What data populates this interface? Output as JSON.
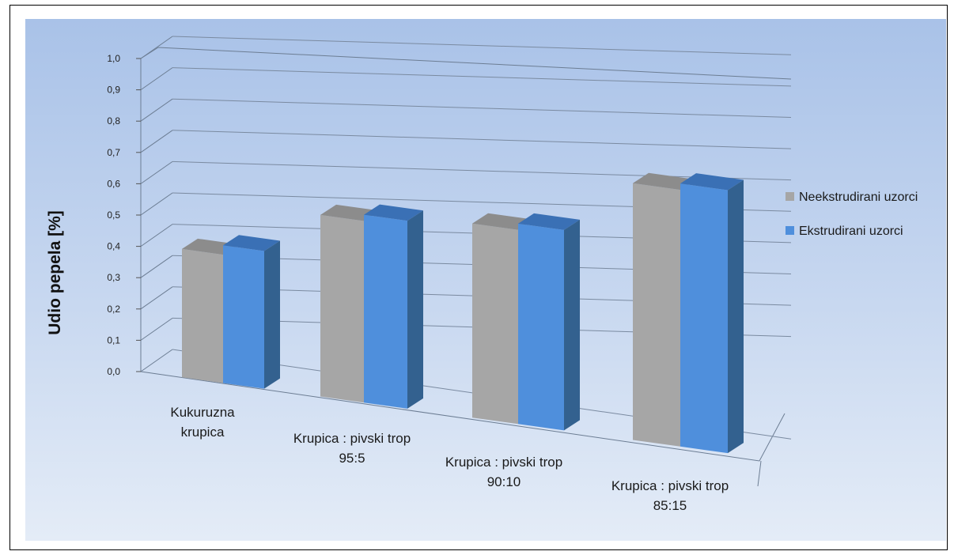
{
  "chart_data": {
    "type": "bar",
    "title": "",
    "xlabel": "",
    "ylabel": "Udio pepela [%]",
    "ylim": [
      0,
      1.0
    ],
    "yticks": [
      "0,0",
      "0,1",
      "0,2",
      "0,3",
      "0,4",
      "0,5",
      "0,6",
      "0,7",
      "0,8",
      "0,9",
      "1,0"
    ],
    "categories": [
      [
        "Kukuruzna",
        "krupica"
      ],
      [
        "Krupica : pivski trop",
        "95:5"
      ],
      [
        "Krupica : pivski trop",
        "90:10"
      ],
      [
        "Krupica : pivski trop",
        "85:15"
      ]
    ],
    "series": [
      {
        "name": "Neekstrudirani uzorci",
        "values": [
          0.41,
          0.58,
          0.62,
          0.82
        ],
        "color": "#a6a6a6",
        "side": "#7b7b7b",
        "top": "#8c8c8c"
      },
      {
        "name": "Ekstrudirani uzorci",
        "values": [
          0.44,
          0.6,
          0.64,
          0.84
        ],
        "color": "#4f8fdc",
        "side": "#33618f",
        "top": "#3a70b5"
      }
    ],
    "legend_position": "right",
    "grid": true,
    "three_d": true
  }
}
